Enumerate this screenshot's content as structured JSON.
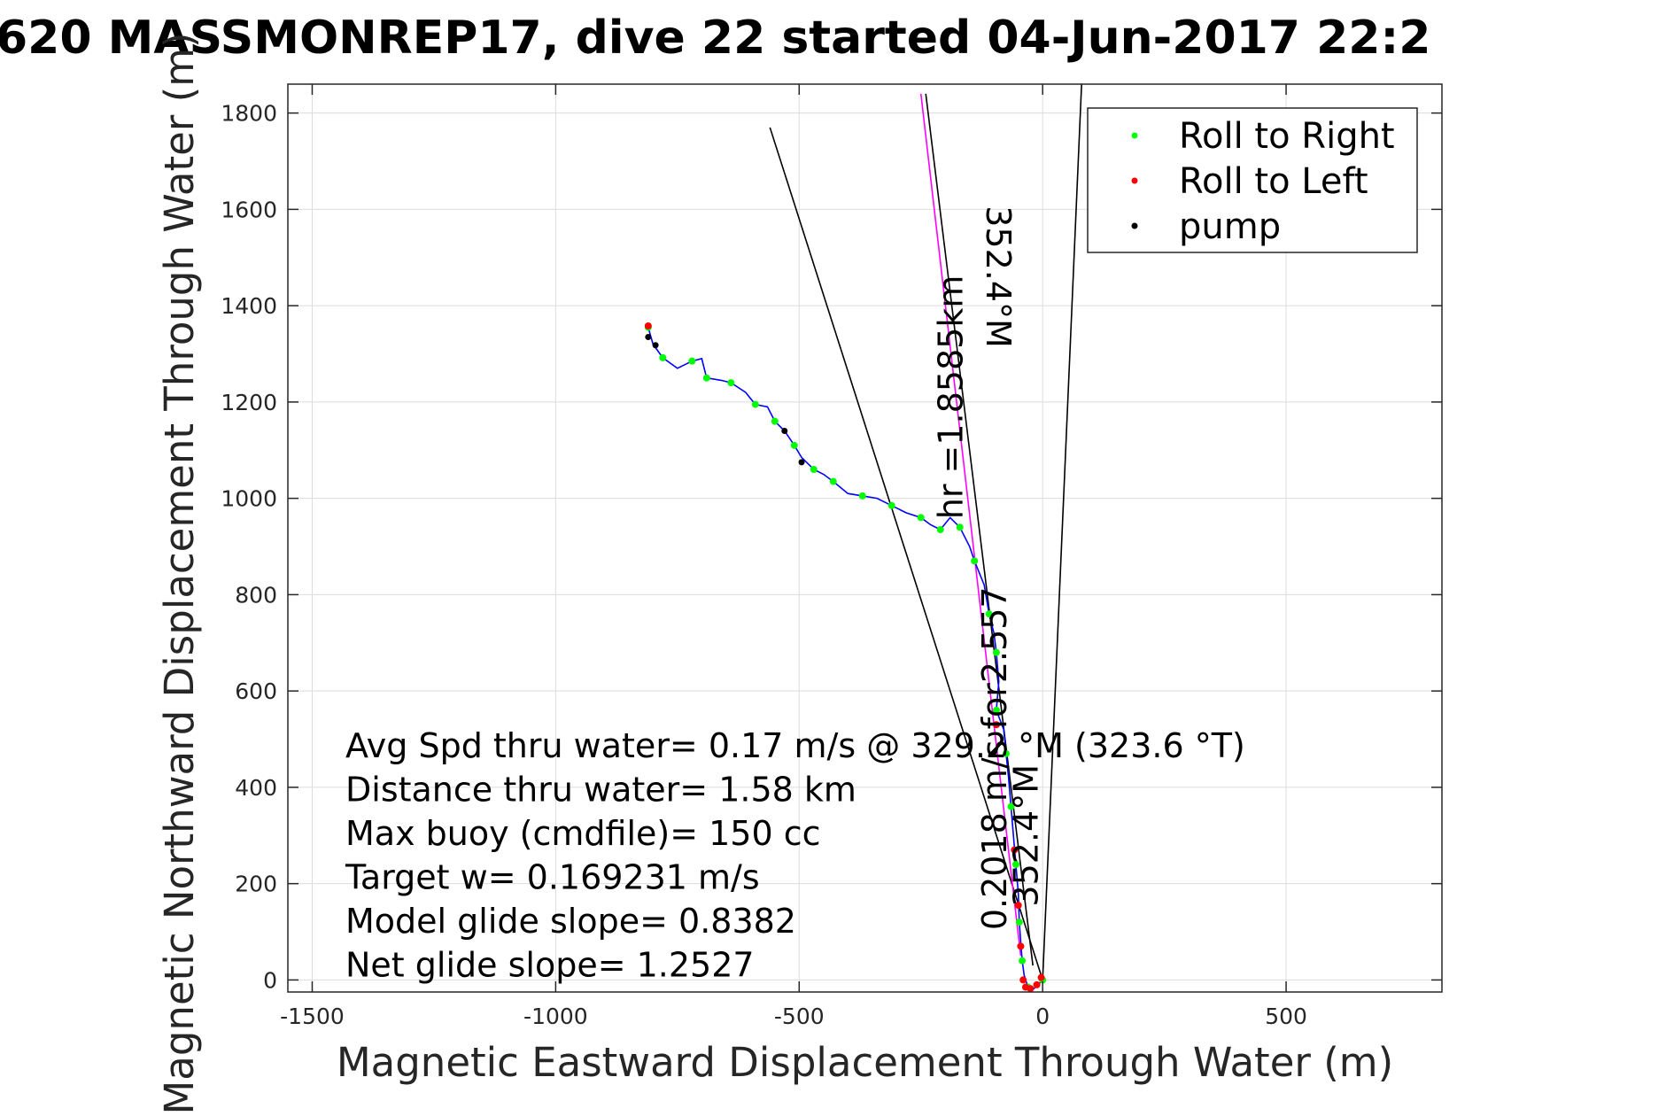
{
  "chart_data": {
    "type": "line",
    "title": "620 MASSMONREP17, dive 22 started 04-Jun-2017 22:2",
    "xlabel": "Magnetic Eastward Displacement Through Water (m)",
    "ylabel": "Magnetic Northward Displacement Through Water (m)",
    "xlim": [
      -1550,
      820
    ],
    "ylim": [
      -25,
      1860
    ],
    "x_ticks": [
      -1500,
      -1000,
      -500,
      0,
      500
    ],
    "x_tick_labels": [
      "-1500",
      "-1000",
      "-500",
      "0",
      "500"
    ],
    "y_ticks": [
      0,
      200,
      400,
      600,
      800,
      1000,
      1200,
      1400,
      1600,
      1800
    ],
    "y_tick_labels": [
      "0",
      "200",
      "400",
      "600",
      "800",
      "1000",
      "1200",
      "1400",
      "1600",
      "1800"
    ],
    "grid": true,
    "legend_position": "top-right",
    "legend": [
      {
        "label": "Roll to Right",
        "color": "#00ff00"
      },
      {
        "label": "Roll to Left",
        "color": "#ff0000"
      },
      {
        "label": "pump",
        "color": "#000000"
      }
    ],
    "track": {
      "color": "#0000ff",
      "points": [
        [
          -810,
          1355
        ],
        [
          -800,
          1320
        ],
        [
          -780,
          1292
        ],
        [
          -750,
          1270
        ],
        [
          -720,
          1285
        ],
        [
          -700,
          1290
        ],
        [
          -690,
          1250
        ],
        [
          -660,
          1245
        ],
        [
          -640,
          1240
        ],
        [
          -610,
          1220
        ],
        [
          -590,
          1195
        ],
        [
          -565,
          1190
        ],
        [
          -550,
          1160
        ],
        [
          -530,
          1140
        ],
        [
          -510,
          1110
        ],
        [
          -495,
          1085
        ],
        [
          -470,
          1060
        ],
        [
          -450,
          1050
        ],
        [
          -430,
          1035
        ],
        [
          -400,
          1010
        ],
        [
          -370,
          1005
        ],
        [
          -340,
          1000
        ],
        [
          -310,
          985
        ],
        [
          -280,
          970
        ],
        [
          -250,
          960
        ],
        [
          -230,
          945
        ],
        [
          -210,
          935
        ],
        [
          -190,
          960
        ],
        [
          -170,
          940
        ],
        [
          -150,
          900
        ],
        [
          -140,
          870
        ],
        [
          -120,
          820
        ],
        [
          -110,
          760
        ],
        [
          -100,
          720
        ],
        [
          -95,
          680
        ],
        [
          -90,
          620
        ],
        [
          -95,
          560
        ],
        [
          -80,
          520
        ],
        [
          -75,
          470
        ],
        [
          -70,
          420
        ],
        [
          -65,
          360
        ],
        [
          -60,
          300
        ],
        [
          -55,
          240
        ],
        [
          -50,
          180
        ],
        [
          -48,
          120
        ],
        [
          -45,
          80
        ],
        [
          -42,
          40
        ],
        [
          -38,
          10
        ],
        [
          -30,
          -15
        ],
        [
          -20,
          -20
        ],
        [
          0,
          0
        ]
      ]
    },
    "pump_points": [
      [
        -810,
        1335
      ],
      [
        -795,
        1318
      ],
      [
        -530,
        1140
      ],
      [
        -495,
        1075
      ]
    ],
    "roll_left_points": [
      [
        -810,
        1358
      ],
      [
        -95,
        530
      ],
      [
        -58,
        270
      ],
      [
        -50,
        155
      ],
      [
        -45,
        70
      ],
      [
        -40,
        0
      ],
      [
        -35,
        -15
      ],
      [
        -25,
        -18
      ],
      [
        -12,
        -10
      ],
      [
        -3,
        5
      ]
    ],
    "lines": [
      {
        "from": [
          0,
          0
        ],
        "to": [
          -560,
          1770
        ],
        "color": "#000000"
      },
      {
        "from": [
          0,
          0
        ],
        "to": [
          80,
          1860
        ],
        "color": "#000000"
      },
      {
        "from": [
          -45,
          50
        ],
        "to": [
          -250,
          1840
        ],
        "color": "#ff00ff"
      },
      {
        "from": [
          -20,
          30
        ],
        "to": [
          -240,
          1840
        ],
        "color": "#000000"
      }
    ],
    "annotations": [
      {
        "text": "352.4°M",
        "x": -115,
        "y": 1460,
        "rotate": 90
      },
      {
        "text": "hr =1.8585km",
        "x": -165,
        "y": 1210,
        "rotate": -90
      },
      {
        "text": "0.2018 m/s for2.557",
        "x": -75,
        "y": 460,
        "rotate": -90
      },
      {
        "text": "352.4°M",
        "x": -10,
        "y": 300,
        "rotate": -90
      }
    ]
  },
  "stats": [
    "Avg Spd thru water=  0.17 m/s @ 329.2 °M (323.6 °T)",
    "Distance thru water=  1.58 km",
    "Max buoy (cmdfile)= 150 cc",
    "Target w= 0.169231 m/s",
    "Model glide slope= 0.8382",
    "Net glide slope= 1.2527"
  ]
}
